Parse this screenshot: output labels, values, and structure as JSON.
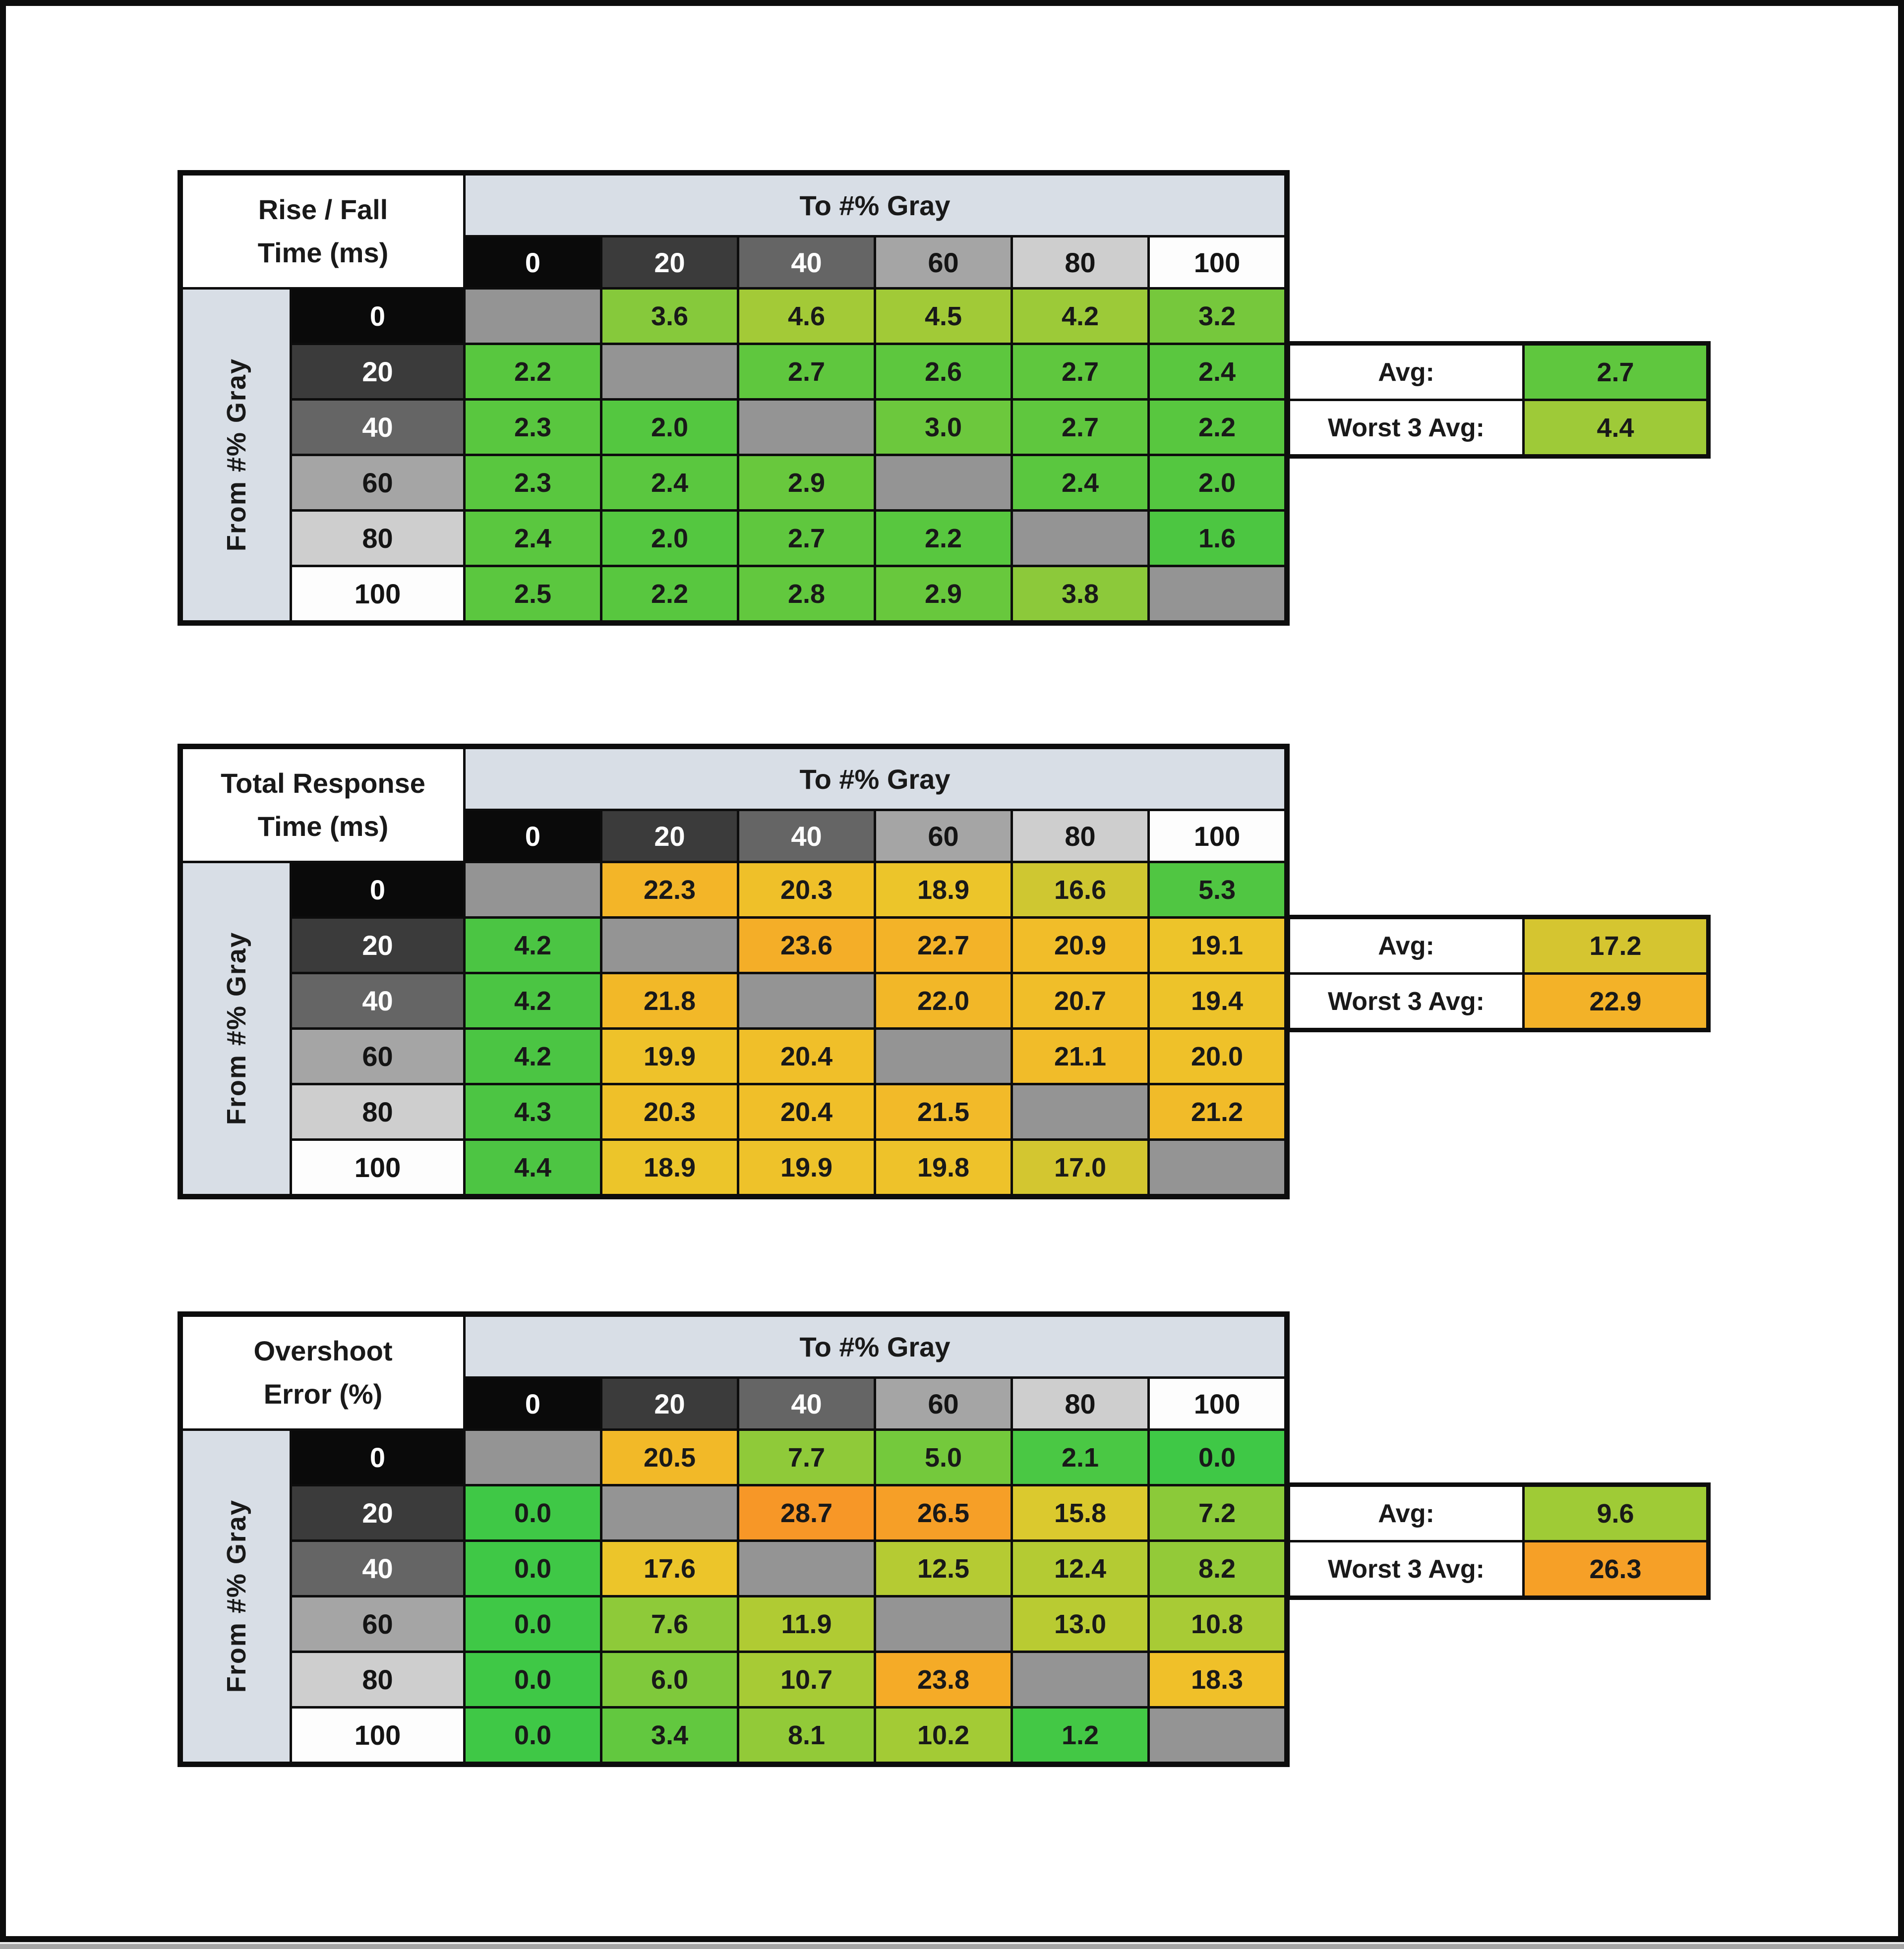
{
  "window": {
    "canvas_color": "#ffffff",
    "frame_color": "#0d0d0d",
    "bottom_strip_color": "#a6a6a6"
  },
  "shared": {
    "to_label": "To #% Gray",
    "from_label": "From #% Gray",
    "gray_levels": [
      "0",
      "20",
      "40",
      "60",
      "80",
      "100"
    ],
    "header_bg": [
      "#0a0a0a",
      "#3b3b3b",
      "#656565",
      "#a5a5a5",
      "#cecece",
      "#fdfdfd"
    ],
    "header_fg": [
      "#ffffff",
      "#ffffff",
      "#ffffff",
      "#141414",
      "#141414",
      "#141414"
    ],
    "band_bg": "#d8dee6",
    "diag_bg": "#949494",
    "avg_label": "Avg:",
    "worst_label": "Worst 3 Avg:"
  },
  "chart_data": [
    {
      "type": "heatmap",
      "title": "Rise / Fall Time (ms)",
      "title_lines": [
        "Rise / Fall",
        "Time (ms)"
      ],
      "xlabel": "To #% Gray",
      "ylabel": "From #% Gray",
      "x_categories": [
        "0",
        "20",
        "40",
        "60",
        "80",
        "100"
      ],
      "y_categories": [
        "0",
        "20",
        "40",
        "60",
        "80",
        "100"
      ],
      "values": [
        [
          "",
          "3.6",
          "4.6",
          "4.5",
          "4.2",
          "3.2"
        ],
        [
          "2.2",
          "",
          "2.7",
          "2.6",
          "2.7",
          "2.4"
        ],
        [
          "2.3",
          "2.0",
          "",
          "3.0",
          "2.7",
          "2.2"
        ],
        [
          "2.3",
          "2.4",
          "2.9",
          "",
          "2.4",
          "2.0"
        ],
        [
          "2.4",
          "2.0",
          "2.7",
          "2.2",
          "",
          "1.6"
        ],
        [
          "2.5",
          "2.2",
          "2.8",
          "2.9",
          "3.8",
          ""
        ]
      ],
      "cell_colors": [
        [
          null,
          "#86c93b",
          "#a3ca37",
          "#a1ca37",
          "#9cca38",
          "#76c83c"
        ],
        [
          "#58c73f",
          null,
          "#5fc73e",
          "#5dc73e",
          "#5fc73e",
          "#5ac73f"
        ],
        [
          "#59c73f",
          "#54c740",
          null,
          "#6cc83d",
          "#5fc73e",
          "#58c73f"
        ],
        [
          "#59c73f",
          "#5ac73f",
          "#68c83d",
          null,
          "#5ac73f",
          "#54c740"
        ],
        [
          "#5ac73f",
          "#54c740",
          "#5fc73e",
          "#58c73f",
          null,
          "#4cc641"
        ],
        [
          "#5bc73f",
          "#58c73f",
          "#62c83e",
          "#68c83d",
          "#8cc93a",
          null
        ]
      ],
      "summary": {
        "avg_label": "Avg:",
        "avg_value": "2.7",
        "avg_color": "#5fc73e",
        "worst_label": "Worst 3 Avg:",
        "worst_value": "4.4",
        "worst_color": "#9eca38"
      }
    },
    {
      "type": "heatmap",
      "title": "Total Response Time (ms)",
      "title_lines": [
        "Total Response",
        "Time (ms)"
      ],
      "xlabel": "To #% Gray",
      "ylabel": "From #% Gray",
      "x_categories": [
        "0",
        "20",
        "40",
        "60",
        "80",
        "100"
      ],
      "y_categories": [
        "0",
        "20",
        "40",
        "60",
        "80",
        "100"
      ],
      "values": [
        [
          "",
          "22.3",
          "20.3",
          "18.9",
          "16.6",
          "5.3"
        ],
        [
          "4.2",
          "",
          "23.6",
          "22.7",
          "20.9",
          "19.1"
        ],
        [
          "4.2",
          "21.8",
          "",
          "22.0",
          "20.7",
          "19.4"
        ],
        [
          "4.2",
          "19.9",
          "20.4",
          "",
          "21.1",
          "20.0"
        ],
        [
          "4.3",
          "20.3",
          "20.4",
          "21.5",
          "",
          "21.2"
        ],
        [
          "4.4",
          "18.9",
          "19.9",
          "19.8",
          "17.0",
          ""
        ]
      ],
      "cell_colors": [
        [
          null,
          "#f3b528",
          "#efc029",
          "#ecc52a",
          "#cfc731",
          "#50c642"
        ],
        [
          "#4bc543",
          null,
          "#f4ae28",
          "#f3b328",
          "#f1bd29",
          "#edc42a"
        ],
        [
          "#4bc543",
          "#f2b828",
          null,
          "#f2b728",
          "#f0be29",
          "#edc32a"
        ],
        [
          "#4bc543",
          "#eec22a",
          "#f0bf29",
          null,
          "#f1bc29",
          "#efc129"
        ],
        [
          "#4cc543",
          "#efc029",
          "#f0bf29",
          "#f2ba29",
          null,
          "#f1bb29"
        ],
        [
          "#4dc543",
          "#ecc52a",
          "#eec22a",
          "#eec22a",
          "#d3c630",
          null
        ]
      ],
      "summary": {
        "avg_label": "Avg:",
        "avg_value": "17.2",
        "avg_color": "#d5c530",
        "worst_label": "Worst 3 Avg:",
        "worst_value": "22.9",
        "worst_color": "#f3b228"
      }
    },
    {
      "type": "heatmap",
      "title": "Overshoot Error (%)",
      "title_lines": [
        "Overshoot",
        "Error (%)"
      ],
      "xlabel": "To #% Gray",
      "ylabel": "From #% Gray",
      "x_categories": [
        "0",
        "20",
        "40",
        "60",
        "80",
        "100"
      ],
      "y_categories": [
        "0",
        "20",
        "40",
        "60",
        "80",
        "100"
      ],
      "values": [
        [
          "",
          "20.5",
          "7.7",
          "5.0",
          "2.1",
          "0.0"
        ],
        [
          "0.0",
          "",
          "28.7",
          "26.5",
          "15.8",
          "7.2"
        ],
        [
          "0.0",
          "17.6",
          "",
          "12.5",
          "12.4",
          "8.2"
        ],
        [
          "0.0",
          "7.6",
          "11.9",
          "",
          "13.0",
          "10.8"
        ],
        [
          "0.0",
          "6.0",
          "10.7",
          "23.8",
          "",
          "18.3"
        ],
        [
          "0.0",
          "3.4",
          "8.1",
          "10.2",
          "1.2",
          ""
        ]
      ],
      "cell_colors": [
        [
          null,
          "#f2b928",
          "#8fca39",
          "#74c93c",
          "#4ac844",
          "#3fc846"
        ],
        [
          "#3fc846",
          null,
          "#f79727",
          "#f69f27",
          "#dbc92e",
          "#8bca39"
        ],
        [
          "#3fc846",
          "#ecc52a",
          null,
          "#b5cb33",
          "#b4cb33",
          "#93ca38"
        ],
        [
          "#3fc846",
          "#8eca39",
          "#b0cb33",
          null,
          "#b9cb32",
          "#a8cb35"
        ],
        [
          "#3fc846",
          "#7fc93b",
          "#a7cb35",
          "#f5ab27",
          null,
          "#f0c029"
        ],
        [
          "#3fc846",
          "#62c83f",
          "#92ca38",
          "#a3cb35",
          "#43c845",
          null
        ]
      ],
      "summary": {
        "avg_label": "Avg:",
        "avg_value": "9.6",
        "avg_color": "#9fcb36",
        "worst_label": "Worst 3 Avg:",
        "worst_value": "26.3",
        "worst_color": "#f6a027"
      }
    }
  ],
  "layout_tops": [
    343,
    1500,
    2645
  ]
}
